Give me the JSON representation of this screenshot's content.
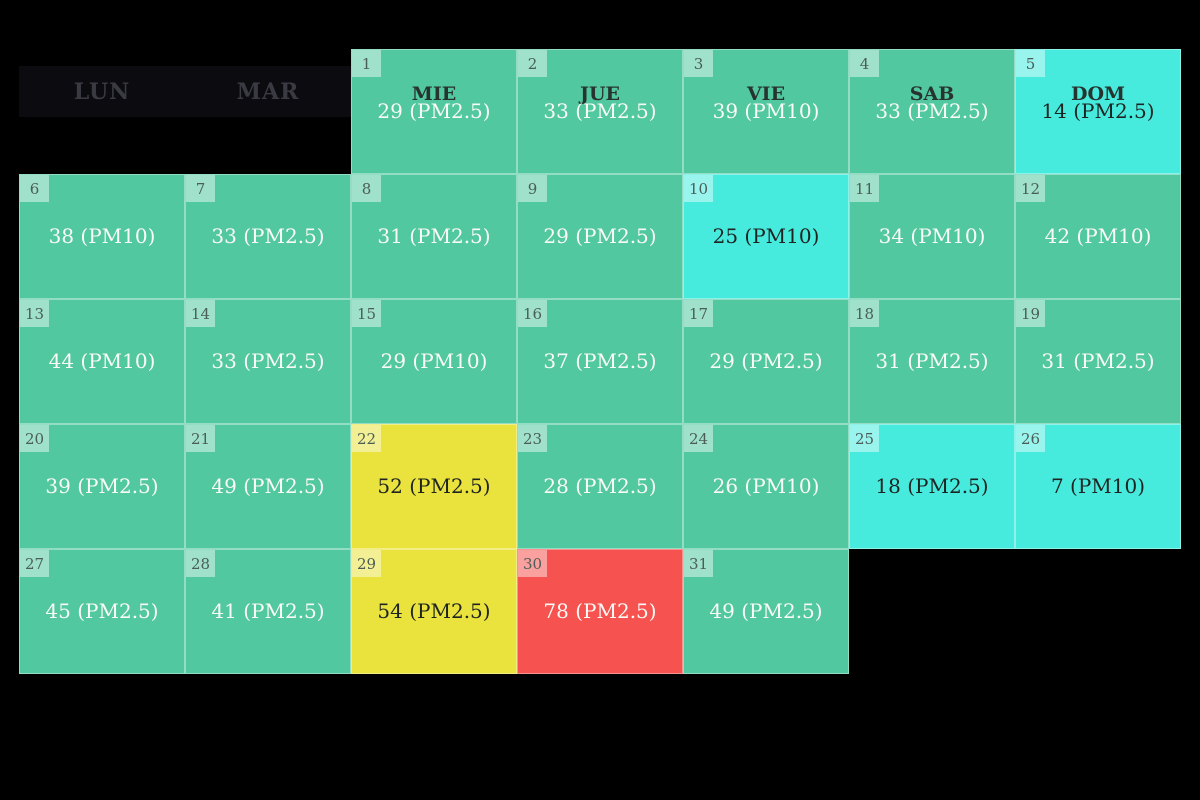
{
  "app": {
    "background": "#000000"
  },
  "header": {
    "visible_weekday_headers": [
      "LUN",
      "MAR"
    ]
  },
  "chart_data": {
    "type": "heatmap",
    "layout": "calendar-month",
    "weekday_columns_visible": [
      "LUN",
      "MAR"
    ],
    "first_day_column": 3,
    "units": [
      "PM2.5",
      "PM10"
    ],
    "color_scale": {
      "green": {
        "bg": "#52C8A0",
        "text": "#FAFAF6"
      },
      "cyan": {
        "bg": "#46EBDE",
        "text": "#1E2421"
      },
      "yellow": {
        "bg": "#EAE23D",
        "text": "#1E2421"
      },
      "red": {
        "bg": "#F65250",
        "text": "#FAFAF6"
      }
    },
    "days": [
      {
        "day": "1",
        "weekday": "MIE",
        "value": 29,
        "metric": "PM2.5",
        "display": "29 (PM2.5)",
        "color": "green"
      },
      {
        "day": "2",
        "weekday": "JUE",
        "value": 33,
        "metric": "PM2.5",
        "display": "33 (PM2.5)",
        "color": "green"
      },
      {
        "day": "3",
        "weekday": "VIE",
        "value": 39,
        "metric": "PM10",
        "display": "39 (PM10)",
        "color": "green"
      },
      {
        "day": "4",
        "weekday": "SAB",
        "value": 33,
        "metric": "PM2.5",
        "display": "33 (PM2.5)",
        "color": "green"
      },
      {
        "day": "5",
        "weekday": "DOM",
        "value": 14,
        "metric": "PM2.5",
        "display": "14 (PM2.5)",
        "color": "cyan"
      },
      {
        "day": "6",
        "value": 38,
        "metric": "PM10",
        "display": "38 (PM10)",
        "color": "green"
      },
      {
        "day": "7",
        "value": 33,
        "metric": "PM2.5",
        "display": "33 (PM2.5)",
        "color": "green"
      },
      {
        "day": "8",
        "value": 31,
        "metric": "PM2.5",
        "display": "31 (PM2.5)",
        "color": "green"
      },
      {
        "day": "9",
        "value": 29,
        "metric": "PM2.5",
        "display": "29 (PM2.5)",
        "color": "green"
      },
      {
        "day": "10",
        "value": 25,
        "metric": "PM10",
        "display": "25 (PM10)",
        "color": "cyan"
      },
      {
        "day": "11",
        "value": 34,
        "metric": "PM10",
        "display": "34 (PM10)",
        "color": "green"
      },
      {
        "day": "12",
        "value": 42,
        "metric": "PM10",
        "display": "42 (PM10)",
        "color": "green"
      },
      {
        "day": "13",
        "value": 44,
        "metric": "PM10",
        "display": "44 (PM10)",
        "color": "green"
      },
      {
        "day": "14",
        "value": 33,
        "metric": "PM2.5",
        "display": "33 (PM2.5)",
        "color": "green"
      },
      {
        "day": "15",
        "value": 29,
        "metric": "PM10",
        "display": "29 (PM10)",
        "color": "green"
      },
      {
        "day": "16",
        "value": 37,
        "metric": "PM2.5",
        "display": "37 (PM2.5)",
        "color": "green"
      },
      {
        "day": "17",
        "value": 29,
        "metric": "PM2.5",
        "display": "29 (PM2.5)",
        "color": "green"
      },
      {
        "day": "18",
        "value": 31,
        "metric": "PM2.5",
        "display": "31 (PM2.5)",
        "color": "green"
      },
      {
        "day": "19",
        "value": 31,
        "metric": "PM2.5",
        "display": "31 (PM2.5)",
        "color": "green"
      },
      {
        "day": "20",
        "value": 39,
        "metric": "PM2.5",
        "display": "39 (PM2.5)",
        "color": "green"
      },
      {
        "day": "21",
        "value": 49,
        "metric": "PM2.5",
        "display": "49 (PM2.5)",
        "color": "green"
      },
      {
        "day": "22",
        "value": 52,
        "metric": "PM2.5",
        "display": "52 (PM2.5)",
        "color": "yellow"
      },
      {
        "day": "23",
        "value": 28,
        "metric": "PM2.5",
        "display": "28 (PM2.5)",
        "color": "green"
      },
      {
        "day": "24",
        "value": 26,
        "metric": "PM10",
        "display": "26 (PM10)",
        "color": "green"
      },
      {
        "day": "25",
        "value": 18,
        "metric": "PM2.5",
        "display": "18 (PM2.5)",
        "color": "cyan"
      },
      {
        "day": "26",
        "value": 7,
        "metric": "PM10",
        "display": "7 (PM10)",
        "color": "cyan"
      },
      {
        "day": "27",
        "value": 45,
        "metric": "PM2.5",
        "display": "45 (PM2.5)",
        "color": "green"
      },
      {
        "day": "28",
        "value": 41,
        "metric": "PM2.5",
        "display": "41 (PM2.5)",
        "color": "green"
      },
      {
        "day": "29",
        "value": 54,
        "metric": "PM2.5",
        "display": "54 (PM2.5)",
        "color": "yellow"
      },
      {
        "day": "30",
        "value": 78,
        "metric": "PM2.5",
        "display": "78 (PM2.5)",
        "color": "red"
      },
      {
        "day": "31",
        "value": 49,
        "metric": "PM2.5",
        "display": "49 (PM2.5)",
        "color": "green"
      }
    ]
  }
}
